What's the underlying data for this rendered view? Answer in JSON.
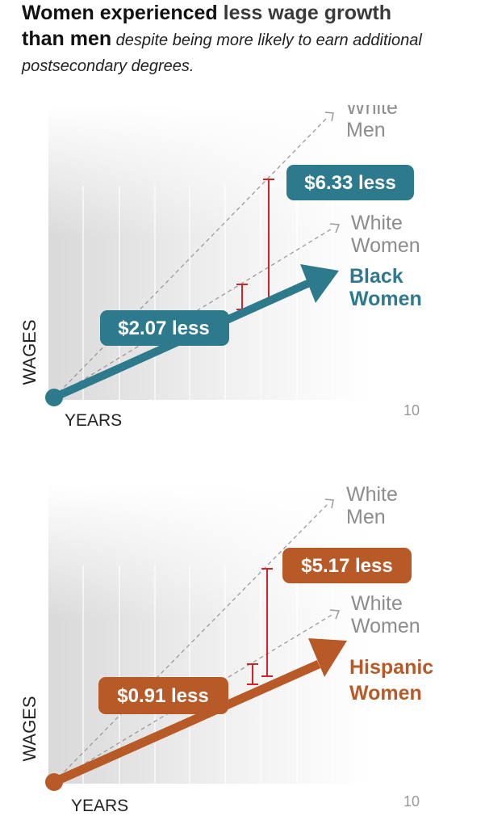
{
  "headline": {
    "part1": "Women experienced ",
    "part2": "less wage growth",
    "part3": "than men",
    "subtitle": " despite being more likely to earn additional postsecondary degrees."
  },
  "chart_data": [
    {
      "type": "line",
      "xlabel": "YEARS",
      "ylabel": "WAGES",
      "x_tick_label": "10",
      "series": [
        {
          "name": "White Men",
          "line1": "White",
          "line2": "Men",
          "color": "#999999",
          "style": "dashed-arrow"
        },
        {
          "name": "White Women",
          "line1": "White",
          "line2": "Women",
          "color": "#999999",
          "style": "dashed-arrow"
        },
        {
          "name": "Black Women",
          "line1": "Black",
          "line2": "Women",
          "color": "#2d7a8c",
          "style": "thick-arrow"
        }
      ],
      "gaps": [
        {
          "label": "$6.33 less",
          "value": 6.33,
          "between": [
            "White Men",
            "Black Women"
          ]
        },
        {
          "label": "$2.07 less",
          "value": 2.07,
          "between": [
            "White Women",
            "Black Women"
          ]
        }
      ],
      "gap_color": "#d1232a"
    },
    {
      "type": "line",
      "xlabel": "YEARS",
      "ylabel": "WAGES",
      "x_tick_label": "10",
      "series": [
        {
          "name": "White Men",
          "line1": "White",
          "line2": "Men",
          "color": "#999999",
          "style": "dashed-arrow"
        },
        {
          "name": "White Women",
          "line1": "White",
          "line2": "Women",
          "color": "#999999",
          "style": "dashed-arrow"
        },
        {
          "name": "Hispanic Women",
          "line1": "Hispanic",
          "line2": "Women",
          "color": "#b85a27",
          "style": "thick-arrow"
        }
      ],
      "gaps": [
        {
          "label": "$5.17 less",
          "value": 5.17,
          "between": [
            "White Men",
            "Hispanic Women"
          ]
        },
        {
          "label": "$0.91 less",
          "value": 0.91,
          "between": [
            "White Women",
            "Hispanic Women"
          ]
        }
      ],
      "gap_color": "#d1232a"
    }
  ]
}
